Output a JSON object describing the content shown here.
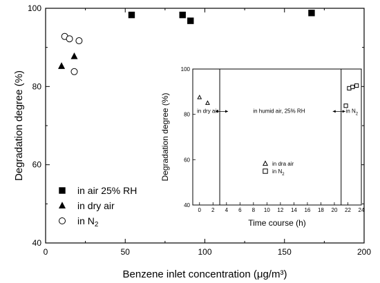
{
  "chart_data": [
    {
      "type": "scatter",
      "id": "main",
      "xlabel": "Benzene inlet concentration (μg/m³)",
      "ylabel": "Degradation degree (%)",
      "xlim": [
        0,
        200
      ],
      "ylim": [
        40,
        100
      ],
      "xticks": [
        "0",
        "50",
        "100",
        "150",
        "200"
      ],
      "yticks": [
        "40",
        "60",
        "80",
        "100"
      ],
      "legend_position": "bottom-left",
      "series": [
        {
          "name": "in air 25% RH",
          "marker": "filled-square",
          "points": [
            [
              54,
              98.3
            ],
            [
              86,
              98.3
            ],
            [
              91,
              96.8
            ],
            [
              167,
              98.8
            ]
          ]
        },
        {
          "name": "in dry air",
          "marker": "filled-triangle",
          "points": [
            [
              10,
              85.2
            ],
            [
              18,
              87.7
            ]
          ]
        },
        {
          "name": "in N₂",
          "name_base": "in N",
          "name_sub": "2",
          "marker": "open-circle",
          "points": [
            [
              12,
              92.8
            ],
            [
              15,
              92.2
            ],
            [
              18,
              83.8
            ],
            [
              21,
              91.7
            ]
          ]
        }
      ]
    },
    {
      "type": "scatter",
      "id": "inset",
      "xlabel": "Time course (h)",
      "ylabel": "Degradation degree (%)",
      "xlim": [
        -1,
        24
      ],
      "ylim": [
        40,
        100
      ],
      "xticks": [
        "0",
        "2",
        "4",
        "6",
        "8",
        "10",
        "12",
        "14",
        "16",
        "18",
        "20",
        "22",
        "24"
      ],
      "yticks": [
        "40",
        "60",
        "80",
        "100"
      ],
      "vlines": [
        3,
        21
      ],
      "annotations": [
        {
          "id": "dry",
          "text": "in dry air",
          "x": 1.2,
          "y": 81.5
        },
        {
          "id": "humid",
          "text": "in humid air, 25% RH",
          "x": 11.8,
          "y": 81.5
        },
        {
          "id": "n2",
          "text_base": "in N",
          "text_sub": "2",
          "x": 22.6,
          "y": 81.5
        }
      ],
      "series": [
        {
          "name": "in dra air",
          "marker": "open-triangle",
          "points": [
            [
              0,
              87.5
            ],
            [
              1.2,
              85
            ]
          ]
        },
        {
          "name": "in N₂",
          "name_base": "in N",
          "name_sub": "2",
          "marker": "open-square",
          "points": [
            [
              21.7,
              83.8
            ],
            [
              22.2,
              91.5
            ],
            [
              22.7,
              92.1
            ],
            [
              23.3,
              92.7
            ]
          ]
        }
      ]
    }
  ]
}
